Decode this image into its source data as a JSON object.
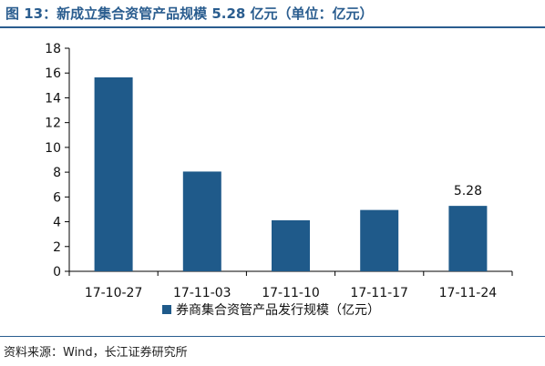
{
  "title": "图 13：新成立集合资管产品规模 5.28 亿元（单位：亿元）",
  "source": "资料来源：Wind，长江证券研究所",
  "chart_data": {
    "type": "bar",
    "categories": [
      "17-10-27",
      "17-11-03",
      "17-11-10",
      "17-11-17",
      "17-11-24"
    ],
    "series": [
      {
        "name": "券商集合资管产品发行规模（亿元）",
        "values": [
          15.65,
          8.05,
          4.12,
          4.95,
          5.28
        ]
      }
    ],
    "data_labels": [
      null,
      null,
      null,
      null,
      "5.28"
    ],
    "ylim": [
      0,
      18
    ],
    "yticks": [
      0,
      2,
      4,
      6,
      8,
      10,
      12,
      14,
      16,
      18
    ],
    "grid": false,
    "legend_position": "bottom",
    "bar_color": "#1f5a8a"
  }
}
